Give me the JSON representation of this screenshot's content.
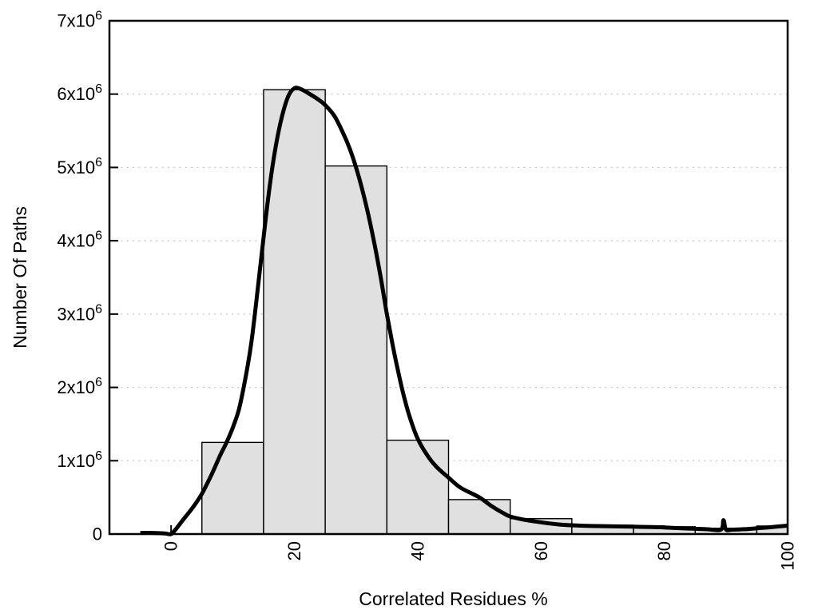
{
  "chart_data": {
    "type": "histogram+line",
    "title": "",
    "xlabel": "Correlated Residues %",
    "ylabel": "Number Of Paths",
    "xlim": [
      -10,
      100
    ],
    "ylim": [
      0,
      7000000
    ],
    "grid": "horizontal-dotted",
    "legend": "none",
    "x_ticks": [
      {
        "value": 0,
        "label": "0"
      },
      {
        "value": 20,
        "label": "20"
      },
      {
        "value": 40,
        "label": "40"
      },
      {
        "value": 60,
        "label": "60"
      },
      {
        "value": 80,
        "label": "80"
      },
      {
        "value": 100,
        "label": "100"
      }
    ],
    "y_ticks": [
      {
        "value": 0,
        "label": "0"
      },
      {
        "value": 1000000,
        "label": "1x10^6"
      },
      {
        "value": 2000000,
        "label": "2x10^6"
      },
      {
        "value": 3000000,
        "label": "3x10^6"
      },
      {
        "value": 4000000,
        "label": "4x10^6"
      },
      {
        "value": 5000000,
        "label": "5x10^6"
      },
      {
        "value": 6000000,
        "label": "6x10^6"
      },
      {
        "value": 7000000,
        "label": "7x10^6"
      }
    ],
    "bars": [
      {
        "from": 5,
        "to": 15,
        "value": 1250000
      },
      {
        "from": 15,
        "to": 25,
        "value": 6060000
      },
      {
        "from": 25,
        "to": 35,
        "value": 5020000
      },
      {
        "from": 35,
        "to": 45,
        "value": 1280000
      },
      {
        "from": 45,
        "to": 55,
        "value": 470000
      },
      {
        "from": 55,
        "to": 65,
        "value": 210000
      },
      {
        "from": 65,
        "to": 75,
        "value": 120000
      },
      {
        "from": 75,
        "to": 85,
        "value": 100000
      },
      {
        "from": 85,
        "to": 95,
        "value": 80000
      },
      {
        "from": 95,
        "to": 100,
        "value": 110000
      }
    ],
    "curve": [
      [
        -5,
        15000
      ],
      [
        -3,
        15000
      ],
      [
        -1,
        8000
      ],
      [
        0,
        0
      ],
      [
        0.7,
        60000
      ],
      [
        2,
        200000
      ],
      [
        3.5,
        360000
      ],
      [
        5,
        550000
      ],
      [
        6.5,
        800000
      ],
      [
        8,
        1080000
      ],
      [
        9,
        1250000
      ],
      [
        10,
        1450000
      ],
      [
        11,
        1700000
      ],
      [
        12,
        2100000
      ],
      [
        13,
        2600000
      ],
      [
        14,
        3300000
      ],
      [
        15,
        4050000
      ],
      [
        16,
        4750000
      ],
      [
        17,
        5300000
      ],
      [
        18,
        5700000
      ],
      [
        19,
        5970000
      ],
      [
        20,
        6080000
      ],
      [
        21,
        6070000
      ],
      [
        22.5,
        6000000
      ],
      [
        24,
        5920000
      ],
      [
        25,
        5850000
      ],
      [
        26.5,
        5700000
      ],
      [
        28,
        5450000
      ],
      [
        29,
        5250000
      ],
      [
        30,
        5000000
      ],
      [
        31,
        4700000
      ],
      [
        32,
        4350000
      ],
      [
        33,
        3950000
      ],
      [
        34,
        3500000
      ],
      [
        35,
        3000000
      ],
      [
        36,
        2550000
      ],
      [
        37,
        2150000
      ],
      [
        38,
        1800000
      ],
      [
        39,
        1520000
      ],
      [
        40,
        1300000
      ],
      [
        41.5,
        1080000
      ],
      [
        43,
        920000
      ],
      [
        45,
        770000
      ],
      [
        47,
        630000
      ],
      [
        50,
        500000
      ],
      [
        52,
        380000
      ],
      [
        54,
        280000
      ],
      [
        55,
        240000
      ],
      [
        57,
        200000
      ],
      [
        60,
        160000
      ],
      [
        63,
        130000
      ],
      [
        65,
        120000
      ],
      [
        68,
        110000
      ],
      [
        72,
        105000
      ],
      [
        75,
        100000
      ],
      [
        78,
        95000
      ],
      [
        80,
        90000
      ],
      [
        82,
        82000
      ],
      [
        85,
        72000
      ],
      [
        87,
        65000
      ],
      [
        89.2,
        62000
      ],
      [
        89.6,
        190000
      ],
      [
        90.0,
        62000
      ],
      [
        91,
        60000
      ],
      [
        93,
        66000
      ],
      [
        95,
        78000
      ],
      [
        97,
        92000
      ],
      [
        100,
        115000
      ]
    ],
    "colors": {
      "bar_fill": "#e0e0e0",
      "bar_stroke": "#000000",
      "curve": "#000000",
      "grid": "#bdbdbd",
      "axis": "#000000",
      "background": "#ffffff"
    }
  }
}
